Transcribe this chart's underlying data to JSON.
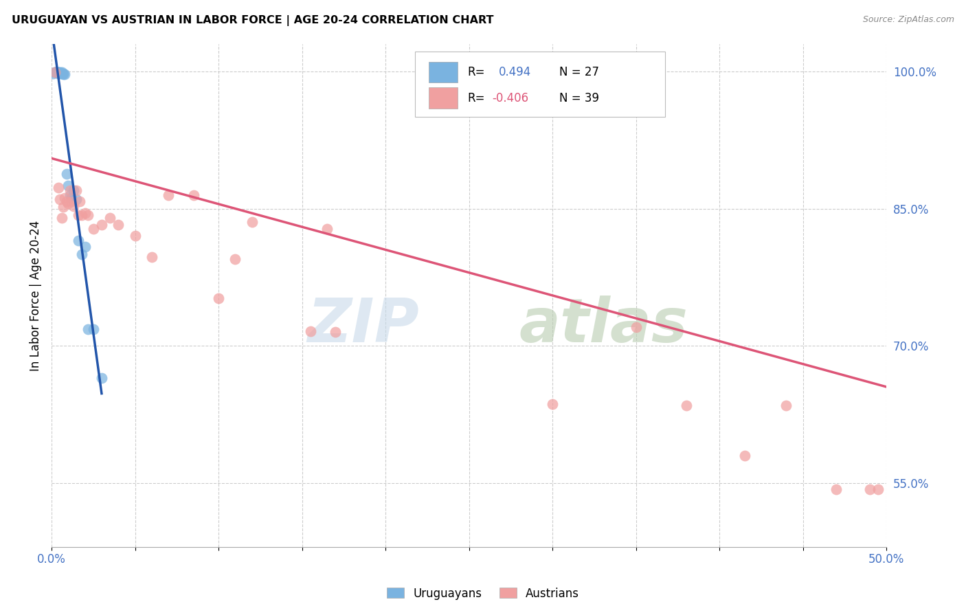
{
  "title": "URUGUAYAN VS AUSTRIAN IN LABOR FORCE | AGE 20-24 CORRELATION CHART",
  "source": "Source: ZipAtlas.com",
  "ylabel": "In Labor Force | Age 20-24",
  "xmin": 0.0,
  "xmax": 0.5,
  "ymin": 0.48,
  "ymax": 1.03,
  "ytick_vals": [
    0.55,
    0.7,
    0.85,
    1.0
  ],
  "ytick_labels": [
    "55.0%",
    "70.0%",
    "85.0%",
    "100.0%"
  ],
  "xtick_vals": [
    0.0,
    0.05,
    0.1,
    0.15,
    0.2,
    0.25,
    0.3,
    0.35,
    0.4,
    0.45,
    0.5
  ],
  "xtick_labels": [
    "0.0%",
    "",
    "",
    "",
    "",
    "",
    "",
    "",
    "",
    "",
    "50.0%"
  ],
  "uruguayan_color": "#7ab3e0",
  "austrian_color": "#f0a0a0",
  "blue_line_color": "#2255aa",
  "pink_line_color": "#dd5577",
  "uruguayan_R": 0.494,
  "uruguayan_N": 27,
  "austrian_R": -0.406,
  "austrian_N": 39,
  "uruguayan_x": [
    0.001,
    0.002,
    0.002,
    0.003,
    0.003,
    0.004,
    0.004,
    0.004,
    0.005,
    0.005,
    0.006,
    0.006,
    0.007,
    0.007,
    0.008,
    0.009,
    0.01,
    0.011,
    0.012,
    0.013,
    0.015,
    0.016,
    0.018,
    0.02,
    0.022,
    0.025,
    0.03
  ],
  "uruguayan_y": [
    0.998,
    0.999,
    0.999,
    0.999,
    0.999,
    0.999,
    0.999,
    0.998,
    0.999,
    0.998,
    0.999,
    0.998,
    0.998,
    0.997,
    0.997,
    0.888,
    0.875,
    0.865,
    0.862,
    0.87,
    0.86,
    0.815,
    0.8,
    0.808,
    0.718,
    0.718,
    0.665
  ],
  "austrian_x": [
    0.002,
    0.004,
    0.005,
    0.006,
    0.007,
    0.008,
    0.009,
    0.01,
    0.011,
    0.012,
    0.013,
    0.015,
    0.016,
    0.017,
    0.018,
    0.02,
    0.022,
    0.025,
    0.03,
    0.035,
    0.04,
    0.05,
    0.06,
    0.07,
    0.085,
    0.1,
    0.11,
    0.12,
    0.155,
    0.165,
    0.17,
    0.3,
    0.35,
    0.38,
    0.415,
    0.44,
    0.47,
    0.49,
    0.495
  ],
  "austrian_y": [
    0.999,
    0.873,
    0.86,
    0.84,
    0.852,
    0.862,
    0.858,
    0.856,
    0.87,
    0.858,
    0.853,
    0.87,
    0.843,
    0.858,
    0.843,
    0.845,
    0.843,
    0.828,
    0.832,
    0.84,
    0.832,
    0.82,
    0.797,
    0.865,
    0.865,
    0.752,
    0.795,
    0.835,
    0.716,
    0.828,
    0.715,
    0.636,
    0.72,
    0.635,
    0.58,
    0.635,
    0.543,
    0.543,
    0.543
  ],
  "pink_trend_x0": 0.0,
  "pink_trend_y0": 0.905,
  "pink_trend_x1": 0.5,
  "pink_trend_y1": 0.655,
  "blue_trend_x0": 0.001,
  "blue_trend_x1": 0.03,
  "bottom_legend": [
    "Uruguayans",
    "Austrians"
  ]
}
